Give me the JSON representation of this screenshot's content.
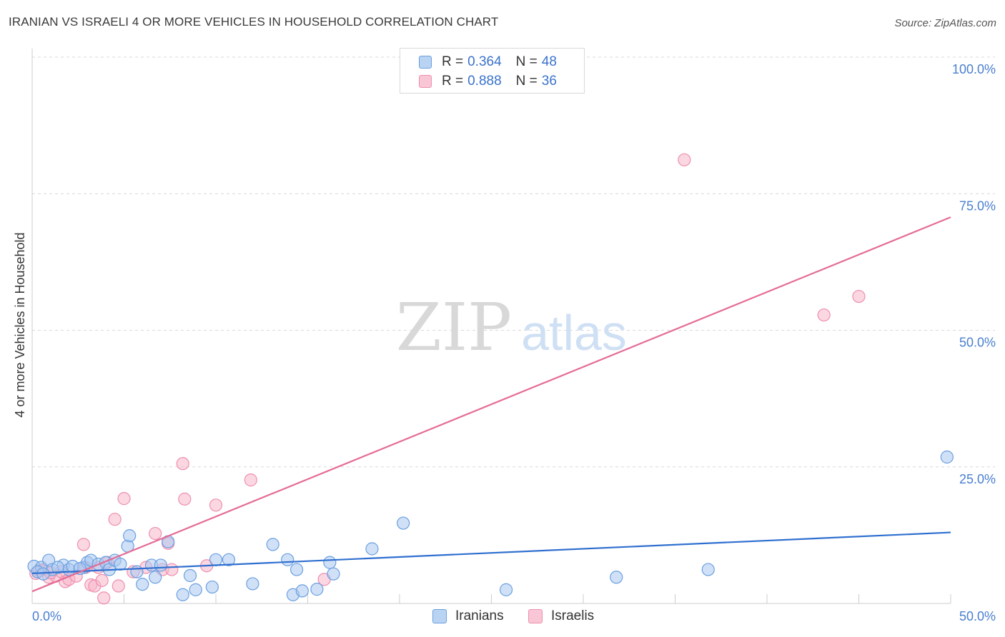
{
  "header": {
    "title": "IRANIAN VS ISRAELI 4 OR MORE VEHICLES IN HOUSEHOLD CORRELATION CHART",
    "source": "Source: ZipAtlas.com"
  },
  "watermark": {
    "zip": "ZIP",
    "atlas": "atlas"
  },
  "legend": {
    "rows": [
      {
        "r_label": "R = ",
        "r_value": "0.364",
        "n_label": "N = ",
        "n_value": "48"
      },
      {
        "r_label": "R = ",
        "r_value": "0.888",
        "n_label": "N = ",
        "n_value": "36"
      }
    ]
  },
  "bottom_legend": {
    "iranians": "Iranians",
    "israelis": "Israelis"
  },
  "colors": {
    "iranians_fill": "#a9c8f0",
    "iranians_stroke": "#6a9fe0",
    "iranians_line": "#2f6fd0",
    "israelis_fill": "#f7b7cb",
    "israelis_stroke": "#ee8fae",
    "israelis_line": "#e56b96",
    "tick_text": "#4a7fd0",
    "grid": "#d9d9d9"
  },
  "chart_data": {
    "type": "scatter",
    "title": "IRANIAN VS ISRAELI 4 OR MORE VEHICLES IN HOUSEHOLD CORRELATION CHART",
    "xlabel": "",
    "ylabel": "4 or more Vehicles in Household",
    "xlim": [
      0,
      50
    ],
    "ylim": [
      0,
      105
    ],
    "x_tick_labels": [
      "0.0%",
      "50.0%"
    ],
    "y_ticks": [
      {
        "value": 25,
        "label": "25.0%"
      },
      {
        "value": 50,
        "label": "50.0%"
      },
      {
        "value": 75,
        "label": "75.0%"
      },
      {
        "value": 100,
        "label": "100.0%"
      }
    ],
    "series": [
      {
        "name": "Iranians",
        "r": 0.364,
        "n": 48,
        "trend": {
          "x": [
            0,
            50
          ],
          "y": [
            5.5,
            13.0
          ]
        },
        "points": [
          [
            0.1,
            6.8
          ],
          [
            0.5,
            6.6
          ],
          [
            0.9,
            7.9
          ],
          [
            1.1,
            6.2
          ],
          [
            1.7,
            7.0
          ],
          [
            2.0,
            6.2
          ],
          [
            2.2,
            6.8
          ],
          [
            2.8,
            6.6
          ],
          [
            3.0,
            7.5
          ],
          [
            3.2,
            7.9
          ],
          [
            3.6,
            7.2
          ],
          [
            4.0,
            7.5
          ],
          [
            4.2,
            6.2
          ],
          [
            4.5,
            7.9
          ],
          [
            4.8,
            7.2
          ],
          [
            5.2,
            10.5
          ],
          [
            5.3,
            12.4
          ],
          [
            5.7,
            5.8
          ],
          [
            6.0,
            3.5
          ],
          [
            6.5,
            7.0
          ],
          [
            6.7,
            4.8
          ],
          [
            7.0,
            7.0
          ],
          [
            7.4,
            11.3
          ],
          [
            8.2,
            1.6
          ],
          [
            8.6,
            5.1
          ],
          [
            8.9,
            2.5
          ],
          [
            9.8,
            3.0
          ],
          [
            10.0,
            8.0
          ],
          [
            10.7,
            8.0
          ],
          [
            12.0,
            3.6
          ],
          [
            13.1,
            10.8
          ],
          [
            13.9,
            8.0
          ],
          [
            14.2,
            1.6
          ],
          [
            14.4,
            6.2
          ],
          [
            14.7,
            2.3
          ],
          [
            15.5,
            2.6
          ],
          [
            16.2,
            7.5
          ],
          [
            16.4,
            5.4
          ],
          [
            18.5,
            10.0
          ],
          [
            20.2,
            14.7
          ],
          [
            25.8,
            2.5
          ],
          [
            31.8,
            4.8
          ],
          [
            36.8,
            6.2
          ],
          [
            49.8,
            26.8
          ],
          [
            0.3,
            5.8
          ],
          [
            0.6,
            5.4
          ],
          [
            1.4,
            6.6
          ],
          [
            2.6,
            6.4
          ]
        ]
      },
      {
        "name": "Israelis",
        "r": 0.888,
        "n": 36,
        "trend": {
          "x": [
            0,
            50
          ],
          "y": [
            2.2,
            70.7
          ]
        },
        "points": [
          [
            0.2,
            5.5
          ],
          [
            0.6,
            6.2
          ],
          [
            0.9,
            4.8
          ],
          [
            1.3,
            5.0
          ],
          [
            1.6,
            5.8
          ],
          [
            1.8,
            4.0
          ],
          [
            2.0,
            4.4
          ],
          [
            2.4,
            5.0
          ],
          [
            2.8,
            10.8
          ],
          [
            2.9,
            6.6
          ],
          [
            3.2,
            3.4
          ],
          [
            3.4,
            3.2
          ],
          [
            3.6,
            6.6
          ],
          [
            3.8,
            4.2
          ],
          [
            3.9,
            1.0
          ],
          [
            4.1,
            7.5
          ],
          [
            4.5,
            15.4
          ],
          [
            4.7,
            3.2
          ],
          [
            5.0,
            19.2
          ],
          [
            5.5,
            5.8
          ],
          [
            6.2,
            6.6
          ],
          [
            6.7,
            12.8
          ],
          [
            7.1,
            6.2
          ],
          [
            7.4,
            11.0
          ],
          [
            7.6,
            6.2
          ],
          [
            8.2,
            25.6
          ],
          [
            8.3,
            19.1
          ],
          [
            9.5,
            6.9
          ],
          [
            10.0,
            18.0
          ],
          [
            11.9,
            22.6
          ],
          [
            15.9,
            4.4
          ],
          [
            35.5,
            81.2
          ],
          [
            43.1,
            52.8
          ],
          [
            45.0,
            56.2
          ],
          [
            0.4,
            6.0
          ],
          [
            1.0,
            5.6
          ]
        ]
      }
    ]
  }
}
